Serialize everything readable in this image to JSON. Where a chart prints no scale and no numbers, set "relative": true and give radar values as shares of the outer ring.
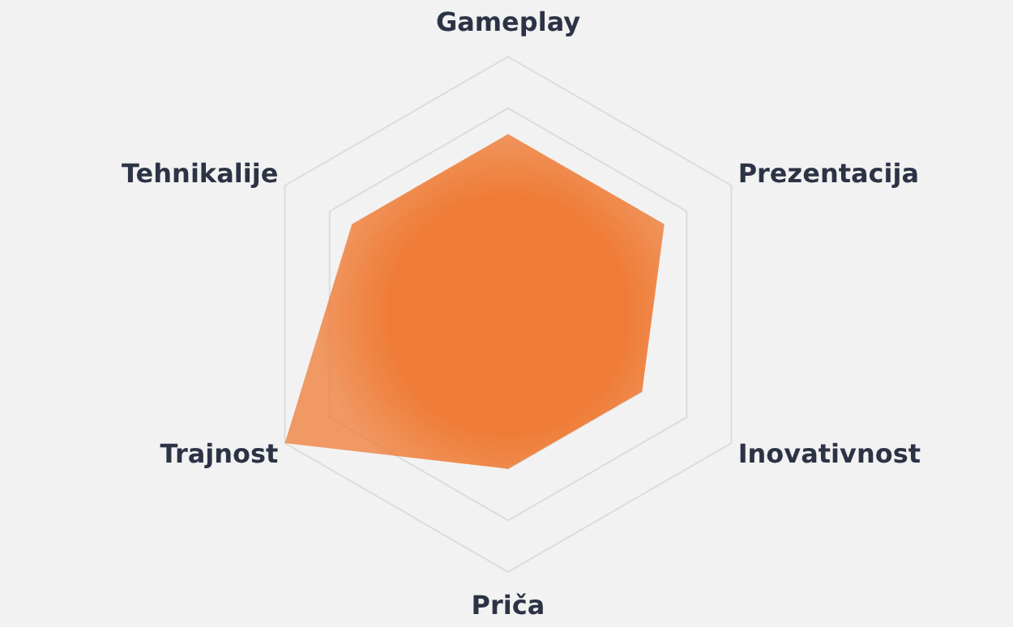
{
  "chart_data": {
    "type": "radar",
    "relative": true,
    "grid": true,
    "categories": [
      "Gameplay",
      "Prezentacija",
      "Inovativnost",
      "Priča",
      "Trajnost",
      "Tehnikalije"
    ],
    "series": [
      {
        "color": "#ef7b35",
        "values": [
          0.7,
          0.7,
          0.6,
          0.6,
          1,
          0.7
        ]
      }
    ]
  }
}
